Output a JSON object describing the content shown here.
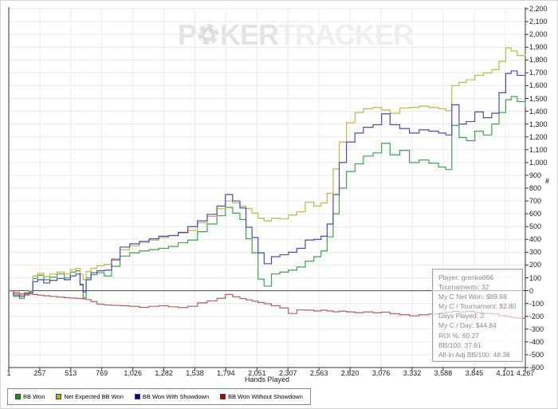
{
  "watermark": {
    "p1": "P",
    "p2": "KER",
    "p3": "TRACKER",
    "chip_icon": "poker-chip-icon"
  },
  "y_axis": {
    "unit_label": "#",
    "tick_values": [
      2200,
      2100,
      2000,
      1900,
      1800,
      1700,
      1600,
      1500,
      1400,
      1300,
      1200,
      1100,
      1000,
      900,
      800,
      700,
      600,
      500,
      400,
      300,
      200,
      100,
      0,
      -100,
      -200,
      -300,
      -400,
      -500,
      -600
    ],
    "tick_labels": [
      "2,200",
      "2,100",
      "2,000",
      "1,900",
      "1,800",
      "1,700",
      "1,600",
      "1,500",
      "1,400",
      "1,300",
      "1,200",
      "1,100",
      "1,000",
      "900",
      "800",
      "700",
      "600",
      "500",
      "400",
      "300",
      "200",
      "100",
      "0",
      "-100",
      "-200",
      "-300",
      "-400",
      "-500",
      "-600"
    ]
  },
  "x_axis": {
    "title": "Hands Played",
    "tick_values": [
      1,
      257,
      513,
      769,
      1026,
      1282,
      1538,
      1794,
      2051,
      2307,
      2563,
      2820,
      3076,
      3332,
      3588,
      3845,
      4101,
      4267
    ],
    "tick_labels": [
      "1",
      "257",
      "513",
      "769",
      "1,026",
      "1,282",
      "1,538",
      "1,794",
      "2,051",
      "2,307",
      "2,563",
      "2,820",
      "3,076",
      "3,332",
      "3,588",
      "3,845",
      "4,101",
      "4,267"
    ]
  },
  "info_box": {
    "lines": [
      "Player: grenka666",
      "Tournaments: 32",
      "My C Net Won: $89.68",
      "My C / Tournament: $2.80",
      "Days Played: 2",
      "My C / Day: $44.84",
      "ROI %: 60.27",
      "BB/100: 37.91",
      "All-In Adj BB/100: 48.38"
    ]
  },
  "legend": {
    "items": [
      {
        "label": "BB Won",
        "color": "#00a300"
      },
      {
        "label": "Net Expected BB Won",
        "color": "#b3b300"
      },
      {
        "label": "BB Won With Showdown",
        "color": "#0000b3"
      },
      {
        "label": "BB Won Without Showdown",
        "color": "#b30000"
      }
    ]
  },
  "chart_data": {
    "type": "line",
    "title": "",
    "xlabel": "Hands Played",
    "ylabel": "#",
    "xlim": [
      1,
      4267
    ],
    "ylim": [
      -600,
      2200
    ],
    "grid": true,
    "legend_position": "bottom",
    "interpolation": "step",
    "zero_line": 0,
    "x": [
      1,
      40,
      90,
      130,
      170,
      200,
      240,
      290,
      340,
      400,
      460,
      510,
      555,
      590,
      615,
      640,
      680,
      730,
      790,
      850,
      920,
      1000,
      1080,
      1160,
      1240,
      1320,
      1400,
      1480,
      1560,
      1640,
      1720,
      1790,
      1850,
      1910,
      1960,
      2010,
      2060,
      2110,
      2170,
      2240,
      2310,
      2380,
      2450,
      2520,
      2580,
      2630,
      2680,
      2730,
      2790,
      2860,
      2930,
      3010,
      3080,
      3150,
      3230,
      3310,
      3390,
      3470,
      3550,
      3610,
      3660,
      3720,
      3780,
      3850,
      3920,
      3990,
      4050,
      4105,
      4150,
      4200,
      4267
    ],
    "series": [
      {
        "name": "BB Won",
        "color": "#3aa64a",
        "values": [
          0,
          -45,
          -60,
          -35,
          -20,
          95,
          120,
          85,
          105,
          130,
          100,
          145,
          155,
          50,
          -55,
          100,
          125,
          140,
          115,
          190,
          270,
          295,
          310,
          320,
          330,
          345,
          375,
          395,
          460,
          520,
          585,
          650,
          605,
          555,
          405,
          295,
          90,
          35,
          130,
          145,
          160,
          185,
          230,
          265,
          310,
          420,
          600,
          800,
          930,
          990,
          1050,
          1075,
          1150,
          1060,
          1095,
          1000,
          1020,
          995,
          965,
          945,
          1290,
          1195,
          1170,
          1245,
          1215,
          1300,
          1390,
          1490,
          1515,
          1475,
          1440
        ]
      },
      {
        "name": "Net Expected BB Won",
        "color": "#c1b93a",
        "values": [
          0,
          -25,
          -35,
          -15,
          0,
          115,
          135,
          110,
          130,
          145,
          130,
          165,
          175,
          130,
          85,
          150,
          175,
          195,
          205,
          250,
          320,
          350,
          375,
          395,
          415,
          430,
          450,
          470,
          530,
          580,
          640,
          700,
          685,
          660,
          640,
          605,
          565,
          545,
          565,
          560,
          590,
          615,
          690,
          660,
          685,
          760,
          950,
          1160,
          1310,
          1390,
          1420,
          1430,
          1410,
          1385,
          1425,
          1430,
          1440,
          1430,
          1420,
          1405,
          1600,
          1625,
          1645,
          1680,
          1700,
          1725,
          1790,
          1895,
          1870,
          1835,
          1845
        ]
      },
      {
        "name": "BB Won With Showdown",
        "color": "#4848cc",
        "values": [
          0,
          -35,
          -45,
          -25,
          -10,
          70,
          85,
          60,
          80,
          95,
          85,
          115,
          130,
          45,
          -10,
          85,
          140,
          155,
          160,
          240,
          340,
          365,
          385,
          405,
          425,
          430,
          455,
          500,
          545,
          595,
          660,
          750,
          700,
          645,
          495,
          415,
          295,
          210,
          265,
          280,
          300,
          330,
          395,
          400,
          425,
          520,
          750,
          1000,
          1160,
          1230,
          1275,
          1295,
          1380,
          1295,
          1265,
          1230,
          1255,
          1245,
          1230,
          1215,
          1450,
          1300,
          1320,
          1395,
          1350,
          1385,
          1545,
          1695,
          1715,
          1680,
          1650
        ]
      },
      {
        "name": "BB Won Without Showdown",
        "color": "#c05c55",
        "values": [
          0,
          -15,
          -25,
          -20,
          -25,
          -30,
          -35,
          -40,
          -45,
          -50,
          -55,
          -58,
          -60,
          -62,
          -65,
          -70,
          -85,
          -105,
          -112,
          -115,
          -118,
          -122,
          -130,
          -122,
          -118,
          -126,
          -132,
          -122,
          -95,
          -80,
          -60,
          -30,
          -48,
          -62,
          -72,
          -82,
          -92,
          -102,
          -118,
          -135,
          -178,
          -150,
          -152,
          -158,
          -152,
          -158,
          -165,
          -160,
          -166,
          -172,
          -166,
          -172,
          -168,
          -180,
          -188,
          -196,
          -188,
          -182,
          -176,
          -168,
          -162,
          -166,
          -162,
          -172,
          -178,
          -182,
          -195,
          -200,
          -210,
          -215,
          -222
        ]
      }
    ]
  }
}
